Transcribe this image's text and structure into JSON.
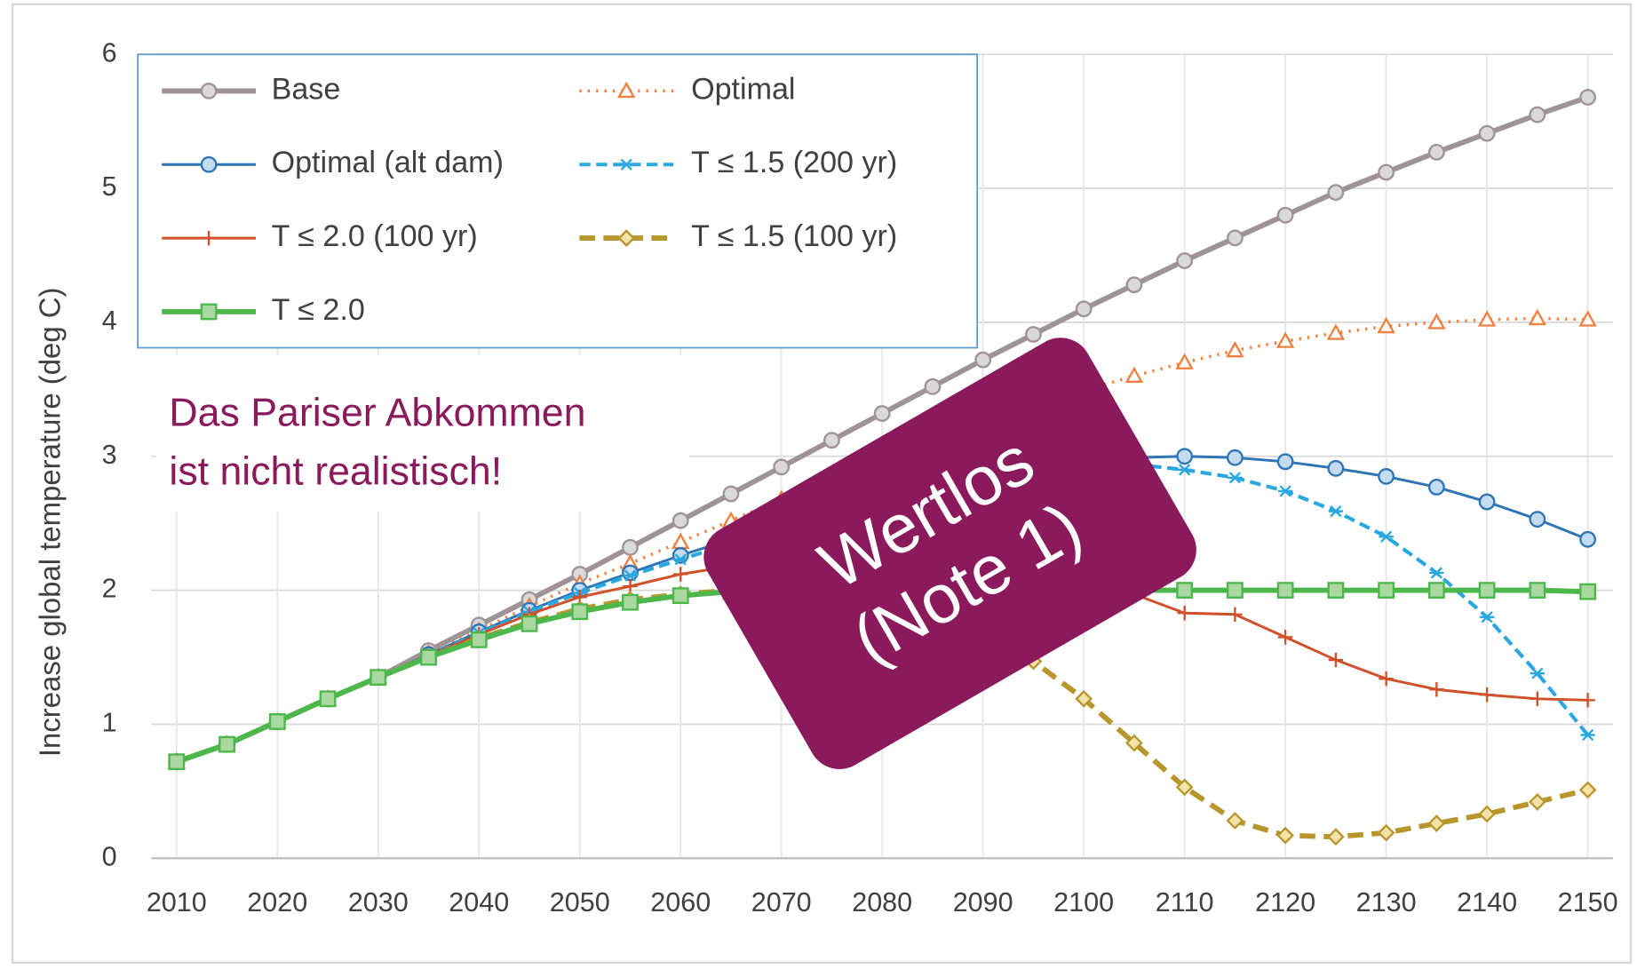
{
  "chart_data": {
    "type": "line",
    "ylabel": "Increase global temperature (deg C)",
    "x": [
      2010,
      2015,
      2020,
      2025,
      2030,
      2035,
      2040,
      2045,
      2050,
      2055,
      2060,
      2065,
      2070,
      2075,
      2080,
      2085,
      2090,
      2095,
      2100,
      2105,
      2110,
      2115,
      2120,
      2125,
      2130,
      2135,
      2140,
      2145,
      2150
    ],
    "xlim": [
      2007.5,
      2152.5
    ],
    "xticks": [
      2010,
      2020,
      2030,
      2040,
      2050,
      2060,
      2070,
      2080,
      2090,
      2100,
      2110,
      2120,
      2130,
      2140,
      2150
    ],
    "ylim": [
      0,
      6
    ],
    "yticks": [
      0,
      1,
      2,
      3,
      4,
      5,
      6
    ],
    "grid": true,
    "legend": "upper left",
    "series": [
      {
        "name": "Base",
        "color": "#a09398",
        "marker": "circle",
        "dash": "solid",
        "width": 5,
        "values": [
          0.72,
          0.85,
          1.02,
          1.19,
          1.35,
          1.55,
          1.74,
          1.93,
          2.12,
          2.32,
          2.52,
          2.72,
          2.92,
          3.12,
          3.32,
          3.52,
          3.72,
          3.91,
          4.1,
          4.28,
          4.46,
          4.63,
          4.8,
          4.97,
          5.12,
          5.27,
          5.41,
          5.55,
          5.68
        ]
      },
      {
        "name": "Optimal",
        "color": "#f08040",
        "marker": "triangle",
        "dash": "dotted",
        "width": 3,
        "values": [
          0.72,
          0.85,
          1.02,
          1.19,
          1.35,
          1.53,
          1.7,
          1.88,
          2.05,
          2.2,
          2.36,
          2.52,
          2.68,
          2.83,
          2.98,
          3.12,
          3.25,
          3.37,
          3.49,
          3.6,
          3.7,
          3.79,
          3.86,
          3.92,
          3.97,
          4.0,
          4.02,
          4.03,
          4.02
        ]
      },
      {
        "name": "Optimal (alt dam)",
        "color": "#2e75b6",
        "marker": "circle",
        "dash": "solid",
        "width": 2.5,
        "values": [
          0.72,
          0.85,
          1.02,
          1.19,
          1.35,
          1.52,
          1.69,
          1.85,
          2.0,
          2.13,
          2.26,
          2.38,
          2.5,
          2.61,
          2.71,
          2.8,
          2.87,
          2.93,
          2.97,
          2.99,
          3.0,
          2.99,
          2.96,
          2.91,
          2.85,
          2.77,
          2.66,
          2.53,
          2.38
        ]
      },
      {
        "name": "T ≤ 1.5 (200 yr)",
        "color": "#29a8e0",
        "marker": "star",
        "dash": "dashed",
        "width": 3.5,
        "values": [
          0.72,
          0.85,
          1.02,
          1.19,
          1.35,
          1.51,
          1.68,
          1.84,
          1.98,
          2.11,
          2.23,
          2.35,
          2.46,
          2.57,
          2.67,
          2.76,
          2.83,
          2.89,
          2.93,
          2.94,
          2.9,
          2.84,
          2.74,
          2.59,
          2.4,
          2.13,
          1.8,
          1.38,
          0.92
        ]
      },
      {
        "name": "T ≤ 2.0 (100 yr)",
        "color": "#d0502a",
        "marker": "plus",
        "dash": "solid",
        "width": 2.5,
        "values": [
          0.72,
          0.85,
          1.02,
          1.19,
          1.35,
          1.51,
          1.67,
          1.82,
          1.95,
          2.03,
          2.12,
          2.18,
          2.21,
          2.23,
          2.23,
          2.22,
          2.19,
          2.15,
          2.08,
          1.97,
          1.83,
          1.82,
          1.65,
          1.48,
          1.34,
          1.26,
          1.22,
          1.19,
          1.18
        ]
      },
      {
        "name": "T ≤ 1.5 (100 yr)",
        "color": "#b8962e",
        "marker": "diamond",
        "dash": "dashed",
        "width": 5,
        "values": [
          0.72,
          0.85,
          1.02,
          1.19,
          1.35,
          1.5,
          1.64,
          1.76,
          1.86,
          1.93,
          1.97,
          2.0,
          2.0,
          1.98,
          1.93,
          1.84,
          1.68,
          1.47,
          1.19,
          0.86,
          0.53,
          0.28,
          0.17,
          0.16,
          0.19,
          0.26,
          0.33,
          0.42,
          0.51
        ]
      },
      {
        "name": "T ≤ 2.0",
        "color": "#4cb84c",
        "marker": "square",
        "dash": "solid",
        "width": 5,
        "values": [
          0.72,
          0.85,
          1.02,
          1.19,
          1.35,
          1.5,
          1.63,
          1.75,
          1.84,
          1.91,
          1.96,
          1.99,
          2.0,
          2.0,
          2.0,
          2.0,
          2.0,
          2.0,
          2.0,
          2.0,
          2.0,
          2.0,
          2.0,
          2.0,
          2.0,
          2.0,
          2.0,
          2.0,
          1.99
        ]
      }
    ],
    "annotations": [
      {
        "text": [
          "Das Pariser Abkommen",
          "ist nicht realistisch!"
        ],
        "color": "#8b1a5c"
      },
      {
        "text": [
          "Wertlos",
          "(Note 1)"
        ],
        "color": "#8b1a5c"
      }
    ]
  }
}
